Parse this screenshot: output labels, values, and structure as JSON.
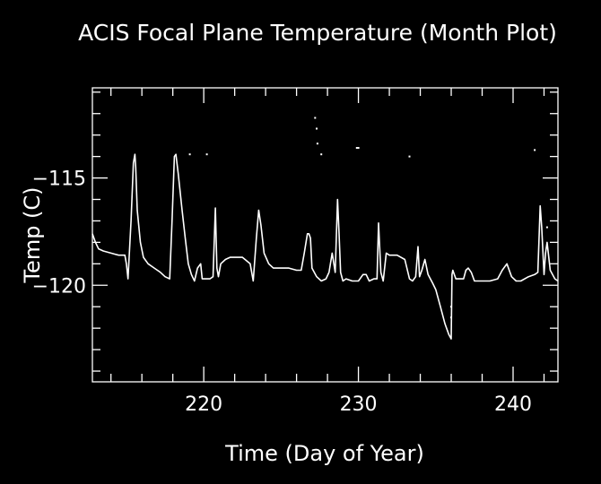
{
  "chart_data": {
    "type": "line",
    "title": "ACIS Focal Plane Temperature (Month Plot)",
    "xlabel": "Time (Day of Year)",
    "ylabel": "Temp (C)",
    "xlim": [
      212.8,
      242.9
    ],
    "ylim": [
      -124.5,
      -110.8
    ],
    "x_ticks_labeled": [
      220,
      230,
      240
    ],
    "y_ticks_labeled": [
      {
        "value": -115,
        "label": "−115"
      },
      {
        "value": -120,
        "label": "−120"
      }
    ],
    "x_minor_step": 2,
    "y_minor_step": 1,
    "grid": false,
    "background": "#000000",
    "line_color": "#ffffff",
    "series": [
      {
        "x": [
          212.8,
          213.0,
          213.2,
          213.5,
          214.0,
          214.5,
          214.9,
          215.0,
          215.1,
          215.3,
          215.45,
          215.55,
          215.6,
          215.7,
          215.9,
          216.1,
          216.4,
          216.8,
          217.2,
          217.5,
          217.8,
          217.95,
          218.1,
          218.2,
          218.35,
          218.6,
          218.8,
          219.0,
          219.2,
          219.4,
          219.6,
          219.8,
          219.9,
          220.4,
          220.6,
          220.75,
          220.85,
          220.95,
          221.1,
          221.4,
          221.7,
          222.0,
          222.5,
          223.0,
          223.2,
          223.4,
          223.55,
          223.7,
          223.9,
          224.2,
          224.5,
          225.0,
          225.5,
          226.0,
          226.3,
          226.5,
          226.7,
          226.8,
          226.9,
          227.0,
          227.3,
          227.6,
          227.9,
          228.1,
          228.3,
          228.5,
          228.65,
          228.75,
          228.85,
          229.0,
          229.2,
          229.6,
          230.0,
          230.3,
          230.5,
          230.7,
          231.0,
          231.2,
          231.3,
          231.45,
          231.6,
          231.8,
          232.0,
          232.5,
          233.0,
          233.3,
          233.5,
          233.7,
          233.85,
          233.95,
          234.1,
          234.3,
          234.5,
          234.8,
          235.0,
          235.3,
          235.6,
          235.85,
          236.0,
          236.05,
          236.1,
          236.3,
          236.8,
          236.95,
          237.1,
          237.3,
          237.5,
          238.0,
          238.5,
          239.0,
          239.3,
          239.6,
          239.9,
          240.2,
          240.5,
          241.0,
          241.4,
          241.6,
          241.75,
          241.85,
          242.0,
          242.1,
          242.2,
          242.4,
          242.7,
          242.9
        ],
        "y": [
          -117.6,
          -118.0,
          -118.3,
          -118.4,
          -118.5,
          -118.6,
          -118.6,
          -119.0,
          -119.7,
          -117.0,
          -114.3,
          -113.9,
          -114.5,
          -116.5,
          -118.0,
          -118.7,
          -119.0,
          -119.2,
          -119.4,
          -119.6,
          -119.7,
          -117.0,
          -114.0,
          -113.9,
          -114.8,
          -116.5,
          -117.8,
          -119.0,
          -119.5,
          -119.8,
          -119.2,
          -119.0,
          -119.7,
          -119.7,
          -119.6,
          -116.4,
          -119.2,
          -119.6,
          -119.0,
          -118.8,
          -118.7,
          -118.7,
          -118.7,
          -119.0,
          -119.8,
          -117.8,
          -116.5,
          -117.2,
          -118.5,
          -119.0,
          -119.2,
          -119.2,
          -119.2,
          -119.3,
          -119.3,
          -118.5,
          -117.6,
          -117.6,
          -117.8,
          -119.2,
          -119.6,
          -119.8,
          -119.7,
          -119.4,
          -118.5,
          -119.4,
          -116.0,
          -117.6,
          -119.4,
          -119.8,
          -119.7,
          -119.8,
          -119.8,
          -119.5,
          -119.5,
          -119.8,
          -119.7,
          -119.7,
          -117.1,
          -119.4,
          -119.8,
          -118.5,
          -118.6,
          -118.6,
          -118.8,
          -119.7,
          -119.8,
          -119.6,
          -118.2,
          -119.6,
          -119.3,
          -118.8,
          -119.5,
          -119.9,
          -120.2,
          -121.0,
          -121.8,
          -122.3,
          -122.5,
          -119.5,
          -119.3,
          -119.7,
          -119.7,
          -119.3,
          -119.2,
          -119.4,
          -119.8,
          -119.8,
          -119.8,
          -119.7,
          -119.3,
          -119.0,
          -119.6,
          -119.8,
          -119.8,
          -119.6,
          -119.5,
          -119.4,
          -116.3,
          -117.3,
          -119.5,
          -118.5,
          -118.0,
          -119.3,
          -119.7,
          -119.8
        ]
      }
    ],
    "scatter_points": [
      {
        "x": 219.1,
        "y": -113.9
      },
      {
        "x": 220.2,
        "y": -113.9
      },
      {
        "x": 227.2,
        "y": -112.2
      },
      {
        "x": 227.3,
        "y": -112.7
      },
      {
        "x": 227.35,
        "y": -113.4
      },
      {
        "x": 227.6,
        "y": -113.9
      },
      {
        "x": 229.9,
        "y": -113.6
      },
      {
        "x": 230.0,
        "y": -113.6
      },
      {
        "x": 233.3,
        "y": -114.0
      },
      {
        "x": 241.4,
        "y": -113.7
      },
      {
        "x": 242.2,
        "y": -117.3
      },
      {
        "x": 236.0,
        "y": -121.0
      },
      {
        "x": 236.0,
        "y": -121.5
      }
    ]
  }
}
